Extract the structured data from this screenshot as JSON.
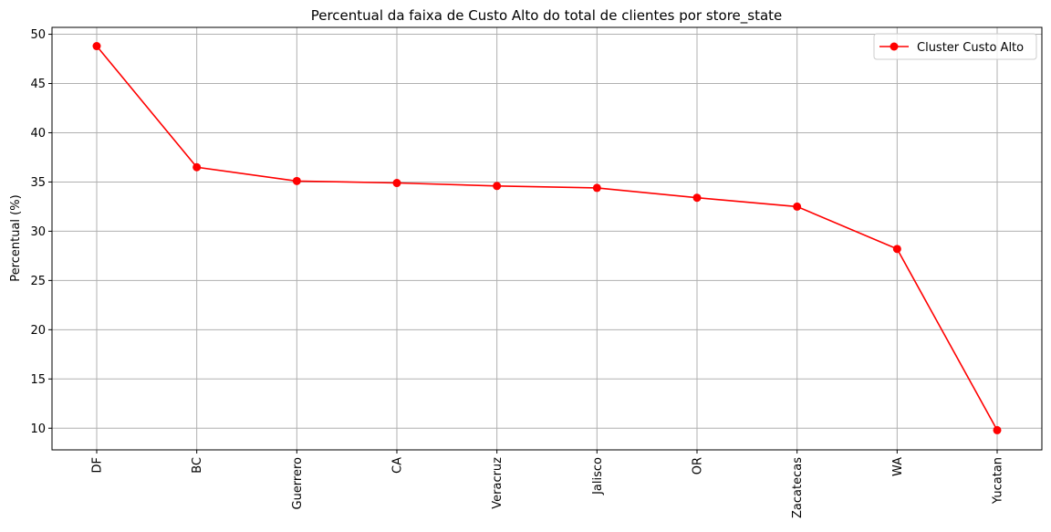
{
  "chart_data": {
    "type": "line",
    "title": "Percentual da faixa de Custo Alto do total de clientes por store_state",
    "xlabel": "",
    "ylabel": "Percentual (%)",
    "categories": [
      "DF",
      "BC",
      "Guerrero",
      "CA",
      "Veracruz",
      "Jalisco",
      "OR",
      "Zacatecas",
      "WA",
      "Yucatan"
    ],
    "series": [
      {
        "name": "Cluster Custo Alto",
        "color": "#ff0000",
        "marker": "circle",
        "values": [
          48.8,
          36.5,
          35.1,
          34.9,
          34.6,
          34.4,
          33.4,
          32.5,
          28.2,
          9.8
        ]
      }
    ],
    "yticks": [
      10,
      15,
      20,
      25,
      30,
      35,
      40,
      45,
      50
    ],
    "ylim": [
      7.8,
      50.7
    ],
    "grid": true,
    "legend_position": "top-right"
  }
}
